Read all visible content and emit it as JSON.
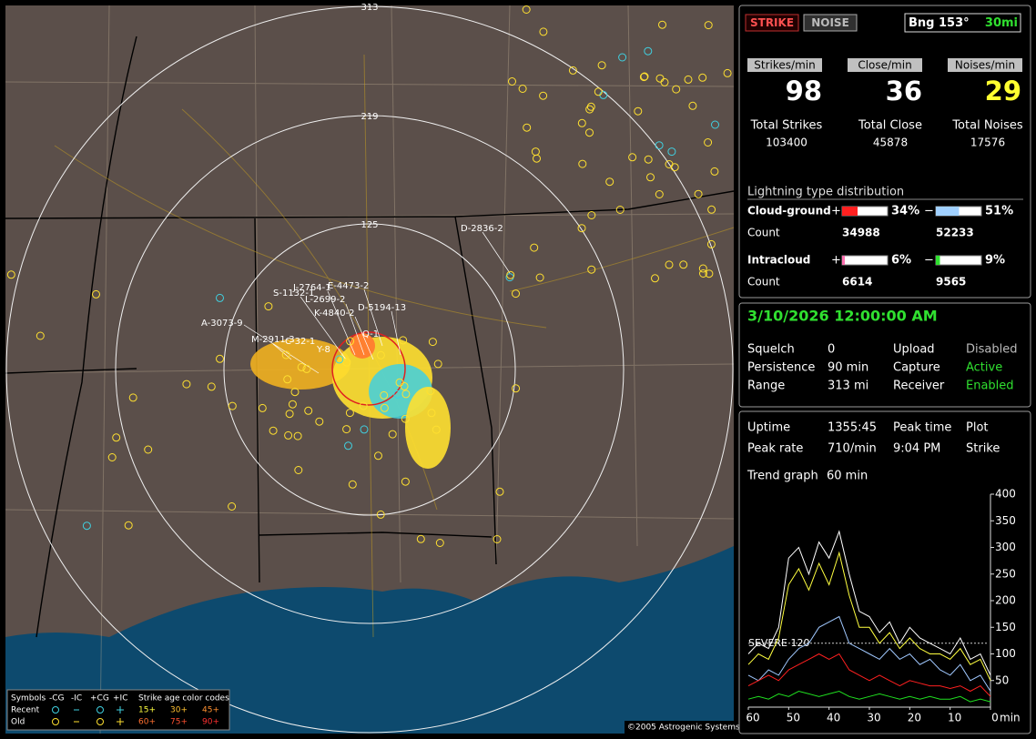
{
  "map": {
    "ring_labels": [
      "313",
      "219",
      "125"
    ],
    "cell_labels": [
      "D-2836-2",
      "J-2764-1",
      "E-4473-2",
      "S-1132-1",
      "L-2699-2",
      "K-4840-2",
      "D-5194-13",
      "A-3073-9",
      "M-2911-3",
      "C-32-1",
      "Y-8",
      "Q-1"
    ],
    "legend": {
      "header": [
        "Symbols",
        "-CG",
        "-IC",
        "+CG",
        "+IC",
        "Strike age color codes"
      ],
      "rows": [
        "Recent",
        "Old"
      ],
      "age_codes": [
        "15+",
        "30+",
        "45+",
        "60+",
        "75+",
        "90+"
      ]
    },
    "copyright": "©2005 Astrogenic Systems"
  },
  "header": {
    "strike_button": "STRIKE",
    "noise_button": "NOISE",
    "bearing": "Bng 153°",
    "range": "30mi"
  },
  "rates": [
    {
      "label": "Strikes/min",
      "value": 98
    },
    {
      "label": "Close/min",
      "value": 36
    },
    {
      "label": "Noises/min",
      "value": 29
    }
  ],
  "totals": [
    {
      "label": "Total Strikes",
      "value": 103400
    },
    {
      "label": "Total Close",
      "value": 45878
    },
    {
      "label": "Total Noises",
      "value": 17576
    }
  ],
  "distribution": {
    "title": "Lightning type distribution",
    "rows": [
      {
        "label": "Cloud-ground",
        "plus": {
          "value": 34,
          "label": "34%"
        },
        "minus": {
          "value": 51,
          "label": "51%"
        },
        "count_label": "Count",
        "counts": [
          34988,
          52233
        ]
      },
      {
        "label": "Intracloud",
        "plus": {
          "value": 6,
          "label": "6%"
        },
        "minus": {
          "value": 9,
          "label": "9%"
        },
        "count_label": "Count",
        "counts": [
          6614,
          9565
        ]
      }
    ]
  },
  "status": {
    "datetime": "3/10/2026 12:00:00 AM",
    "rows": [
      [
        "Squelch",
        "0",
        "Upload",
        "Disabled"
      ],
      [
        "Persistence",
        "90 min",
        "Capture",
        "Active"
      ],
      [
        "Range",
        "313 mi",
        "Receiver",
        "Enabled"
      ]
    ]
  },
  "stats": {
    "rows": [
      [
        "Uptime",
        "1355:45",
        "Peak time",
        "Plot"
      ],
      [
        "Peak rate",
        "710/min",
        "9:04 PM",
        "Strike"
      ],
      [
        "Trend graph",
        "60 min"
      ]
    ]
  },
  "chart_data": {
    "type": "line",
    "x": [
      60,
      57.5,
      55,
      52.5,
      50,
      47.5,
      45,
      42.5,
      40,
      37.5,
      35,
      32.5,
      30,
      27.5,
      25,
      22.5,
      20,
      17.5,
      15,
      12.5,
      10,
      7.5,
      5,
      2.5,
      0
    ],
    "xlim": [
      60,
      0
    ],
    "xticks": [
      60,
      50,
      40,
      30,
      20,
      10,
      0
    ],
    "x_unit": "min",
    "ylim": [
      0,
      400
    ],
    "yticks": [
      50,
      100,
      150,
      200,
      250,
      300,
      350,
      400
    ],
    "threshold": {
      "value": 120,
      "label": "SEVERE 120"
    },
    "series": [
      {
        "color": "#ffffff",
        "values": [
          100,
          120,
          110,
          150,
          280,
          300,
          250,
          310,
          280,
          330,
          250,
          180,
          170,
          140,
          160,
          120,
          150,
          130,
          120,
          110,
          100,
          130,
          90,
          100,
          60
        ]
      },
      {
        "color": "#ffff40",
        "values": [
          80,
          100,
          90,
          130,
          230,
          260,
          220,
          270,
          230,
          290,
          210,
          150,
          150,
          120,
          140,
          110,
          130,
          110,
          100,
          100,
          90,
          110,
          80,
          90,
          50
        ]
      },
      {
        "color": "#a0c8ff",
        "values": [
          60,
          50,
          70,
          60,
          90,
          110,
          120,
          150,
          160,
          170,
          120,
          110,
          100,
          90,
          110,
          90,
          100,
          80,
          90,
          70,
          60,
          80,
          50,
          60,
          30
        ]
      },
      {
        "color": "#ff2020",
        "values": [
          40,
          50,
          60,
          50,
          70,
          80,
          90,
          100,
          90,
          100,
          70,
          60,
          50,
          60,
          50,
          40,
          50,
          45,
          40,
          40,
          35,
          40,
          30,
          40,
          20
        ]
      },
      {
        "color": "#20e020",
        "values": [
          15,
          20,
          15,
          25,
          20,
          30,
          25,
          20,
          25,
          30,
          20,
          15,
          20,
          25,
          20,
          15,
          20,
          15,
          20,
          15,
          15,
          20,
          10,
          15,
          10
        ]
      }
    ]
  }
}
